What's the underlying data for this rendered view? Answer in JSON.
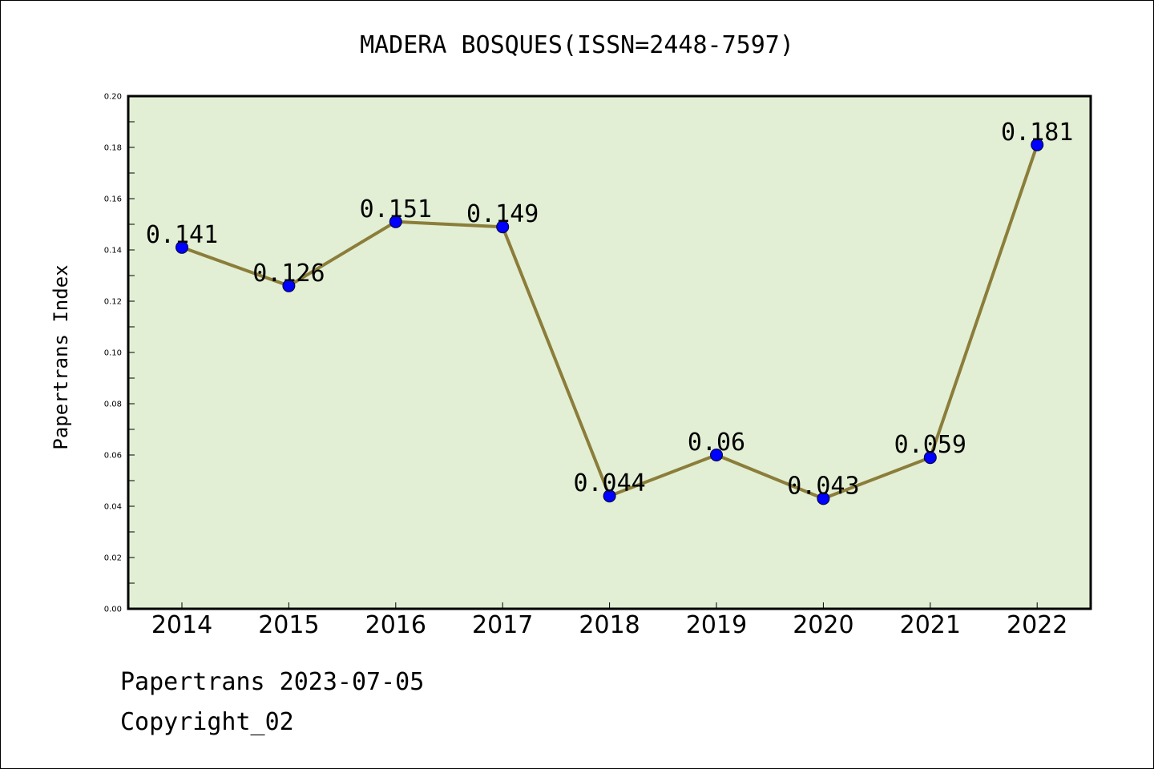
{
  "chart_data": {
    "type": "line",
    "title": "MADERA BOSQUES(ISSN=2448-7597)",
    "xlabel": "",
    "ylabel": "Papertrans Index",
    "categories": [
      "2014",
      "2015",
      "2016",
      "2017",
      "2018",
      "2019",
      "2020",
      "2021",
      "2022"
    ],
    "values": [
      0.141,
      0.126,
      0.151,
      0.149,
      0.044,
      0.06,
      0.043,
      0.059,
      0.181
    ],
    "data_labels": [
      "0.141",
      "0.126",
      "0.151",
      "0.149",
      "0.044",
      "0.06",
      "0.043",
      "0.059",
      "0.181"
    ],
    "ylim": [
      0,
      0.2
    ],
    "yticks": [
      "0.00",
      "0.02",
      "0.04",
      "0.06",
      "0.08",
      "0.10",
      "0.12",
      "0.14",
      "0.16",
      "0.18",
      "0.20"
    ],
    "grid": false,
    "colors": {
      "line": "#8b7d3a",
      "marker": "#0000ff",
      "plot_bg": "#e2efd4"
    }
  },
  "footer": {
    "date_line": "Papertrans 2023-07-05",
    "copyright": "Copyright_02"
  }
}
